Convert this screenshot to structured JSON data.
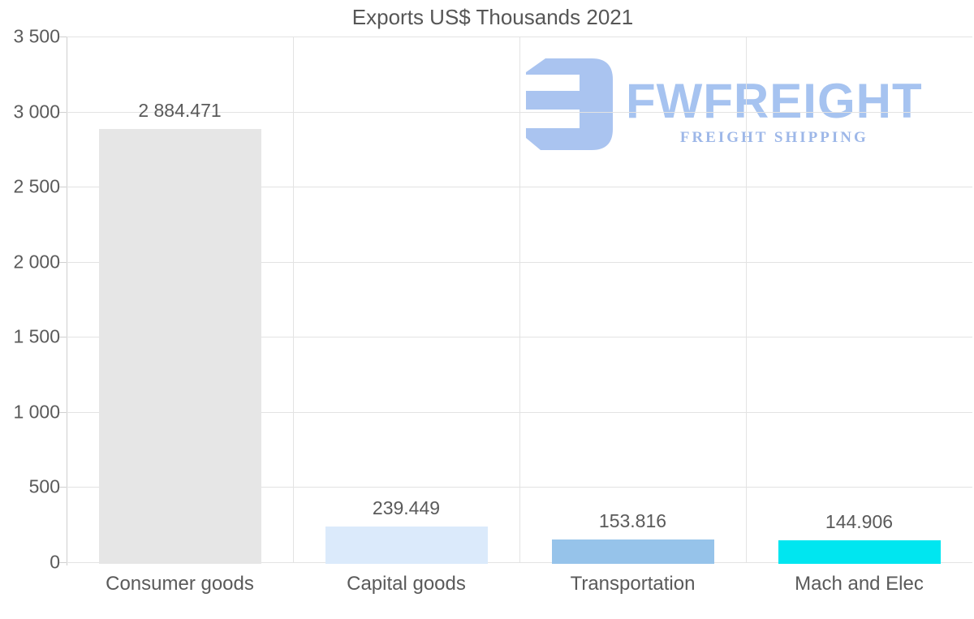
{
  "chart_data": {
    "type": "bar",
    "title": "Exports US$ Thousands 2021",
    "categories": [
      "Consumer goods",
      "Capital goods",
      "Transportation",
      "Mach and Elec"
    ],
    "values": [
      2884.471,
      239.449,
      153.816,
      144.906
    ],
    "value_labels": [
      "2 884.471",
      "239.449",
      "153.816",
      "144.906"
    ],
    "bar_colors": [
      "#e6e6e6",
      "#dbeafb",
      "#96c3ea",
      "#00e6f0"
    ],
    "xlabel": "",
    "ylabel": "",
    "ylim": [
      0,
      3500
    ],
    "ytick_step": 500,
    "ytick_labels": [
      "0",
      "500",
      "1 000",
      "1 500",
      "2 000",
      "2 500",
      "3 000",
      "3 500"
    ],
    "grid": true,
    "legend": false
  },
  "watermark": {
    "brand": "FWFREIGHT",
    "tagline": "FREIGHT SHIPPING",
    "brand_color": "#a6c3f0",
    "tagline_color": "#9db7e8",
    "logo_color": "#aac4f0"
  },
  "colors": {
    "background": "#ffffff",
    "grid": "#e3e3e3",
    "axis": "#cfcfcf",
    "text": "#5a5a5a"
  }
}
